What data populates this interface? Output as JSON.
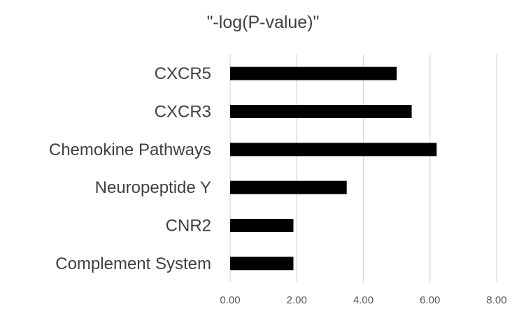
{
  "chart_data": {
    "type": "bar",
    "orientation": "horizontal",
    "title": "\"-log(P-value)\"",
    "categories": [
      "CXCR5",
      "CXCR3",
      "Chemokine Pathways",
      "Neuropeptide Y",
      "CNR2",
      "Complement System"
    ],
    "values": [
      5.0,
      5.45,
      6.2,
      3.5,
      1.9,
      1.9
    ],
    "xlim": [
      0,
      8
    ],
    "x_ticks": [
      "0.00",
      "2.00",
      "4.00",
      "6.00",
      "8.00"
    ],
    "x_tick_values": [
      0,
      2,
      4,
      6,
      8
    ],
    "grid": "vertical",
    "legend": "none",
    "bar_color": "#000000",
    "grid_color": "#d9d9d9",
    "text_color": "#404040"
  }
}
